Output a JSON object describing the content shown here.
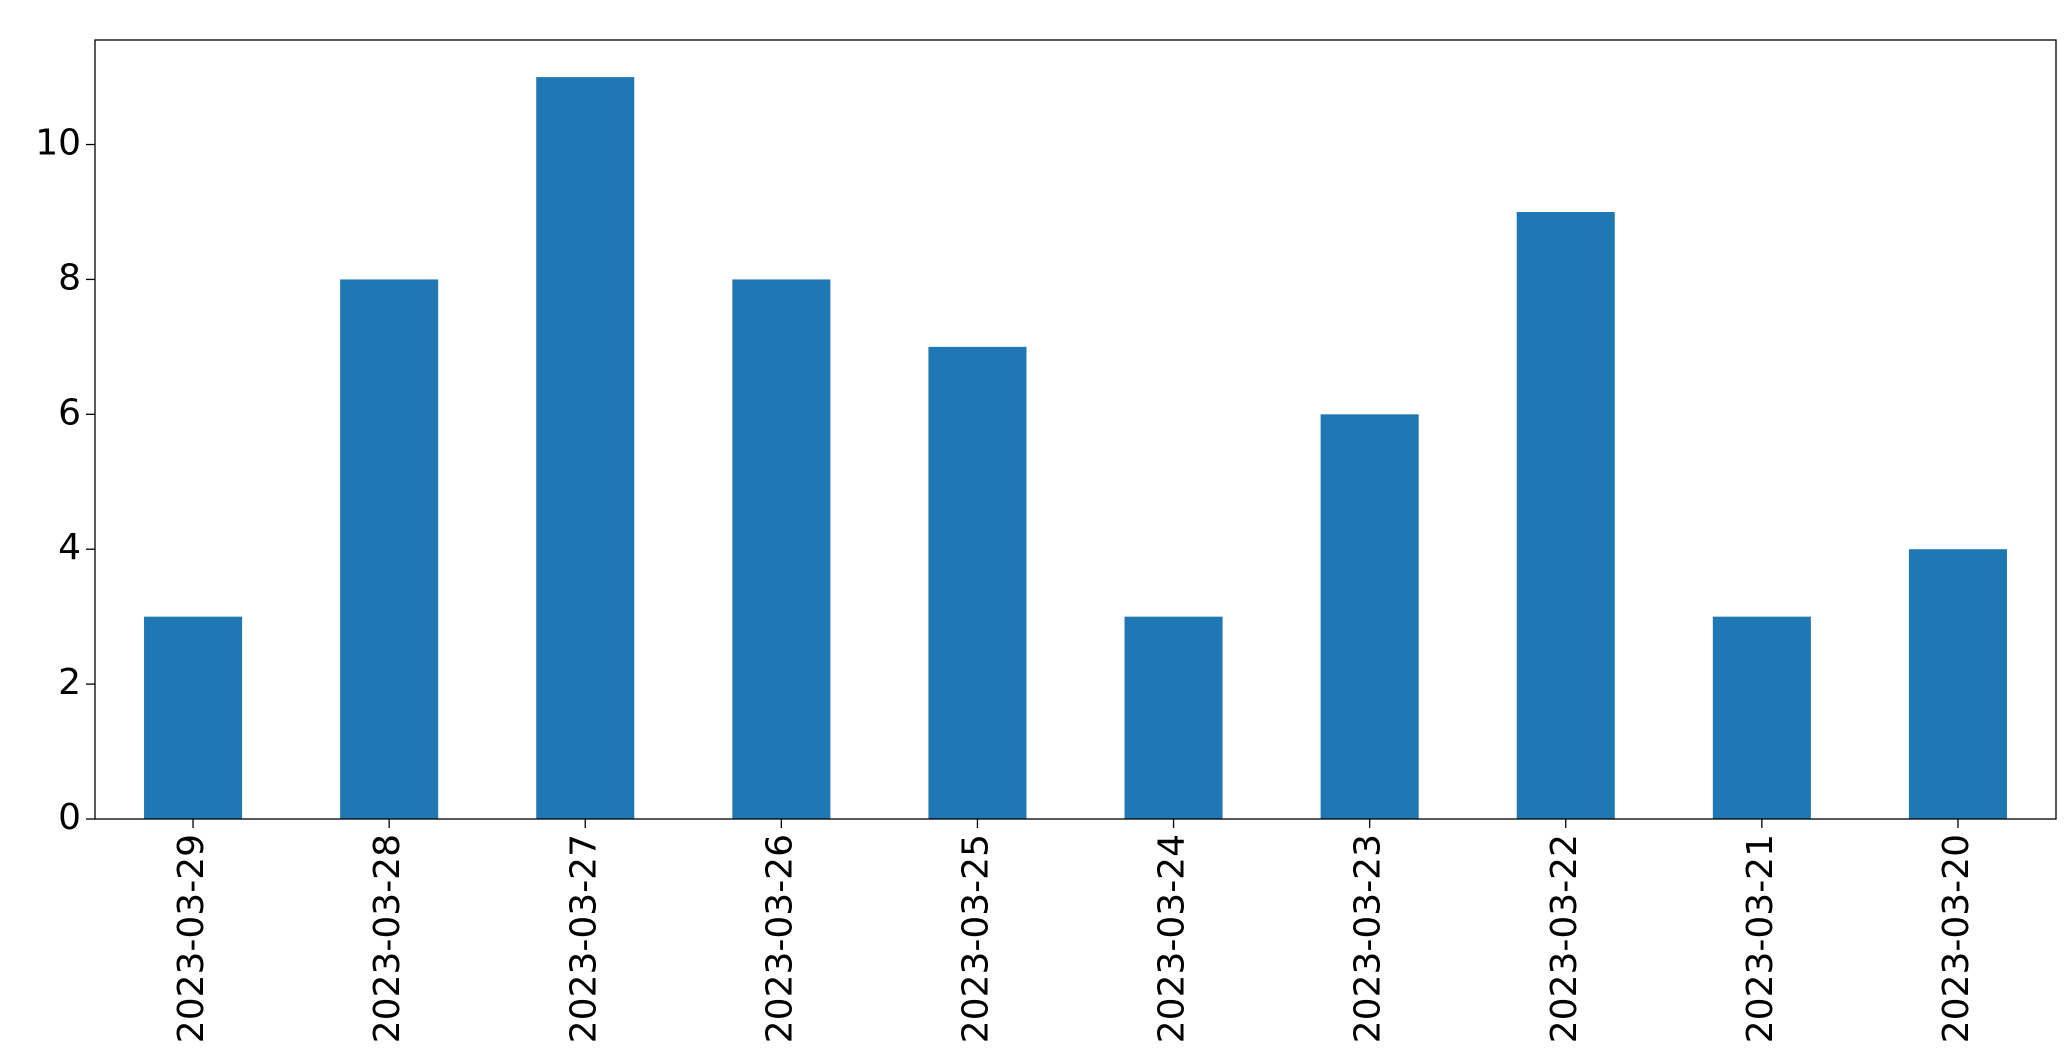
{
  "chart_data": {
    "type": "bar",
    "categories": [
      "2023-03-29",
      "2023-03-28",
      "2023-03-27",
      "2023-03-26",
      "2023-03-25",
      "2023-03-24",
      "2023-03-23",
      "2023-03-22",
      "2023-03-21",
      "2023-03-20"
    ],
    "values": [
      3,
      8,
      11,
      8,
      7,
      3,
      6,
      9,
      3,
      4
    ],
    "color": "#1f77b4",
    "ylim": [
      0,
      11.55
    ],
    "yticks": [
      0,
      2,
      4,
      6,
      8,
      10
    ],
    "grid": false
  }
}
